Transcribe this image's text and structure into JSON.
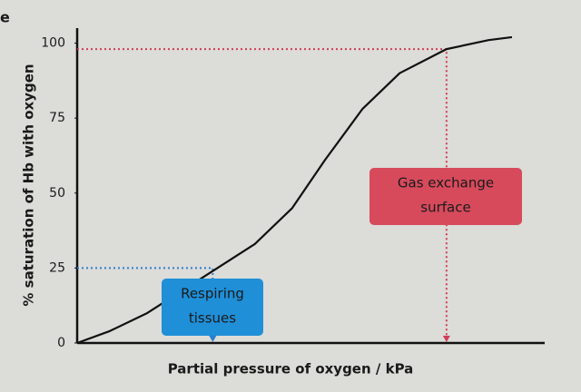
{
  "chart_data": {
    "type": "line",
    "title": "e",
    "x_label": "Partial pressure of oxygen / kPa",
    "y_label": "% saturation of Hb with oxygen",
    "xlim": [
      0,
      100
    ],
    "ylim": [
      0,
      105
    ],
    "yticks": [
      0,
      25,
      50,
      75,
      100
    ],
    "series": [
      {
        "color": "#111111",
        "x": [
          0,
          7,
          15,
          22,
          29,
          38,
          46,
          53,
          61,
          69,
          79,
          88,
          93
        ],
        "values": [
          0,
          4,
          10,
          17,
          24,
          33,
          45,
          61,
          78,
          90,
          98,
          101,
          102
        ]
      }
    ],
    "annotations": [
      {
        "lines": [
          "Gas exchange",
          "surface"
        ],
        "x": 79,
        "y": 98,
        "color": "#d64a5c",
        "line_color": "#d23c57"
      },
      {
        "lines": [
          "Respiring",
          "tissues"
        ],
        "x": 29,
        "y": 25,
        "color": "#1f8fd8",
        "line_color": "#2a7fd0"
      }
    ]
  }
}
